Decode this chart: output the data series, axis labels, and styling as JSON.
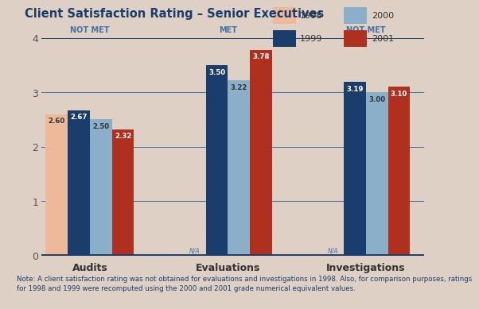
{
  "title": "Client Satisfaction Rating – Senior Executives",
  "categories": [
    "Audits",
    "Evaluations",
    "Investigations"
  ],
  "years": [
    "1998",
    "1999",
    "2000",
    "2001"
  ],
  "colors": {
    "1998": "#EDB99A",
    "1999": "#1A3D6B",
    "2000": "#8BAFC8",
    "2001": "#B03020"
  },
  "values": {
    "Audits": {
      "1998": 2.6,
      "1999": 2.67,
      "2000": 2.5,
      "2001": 2.32
    },
    "Evaluations": {
      "1998": null,
      "1999": 3.5,
      "2000": 3.22,
      "2001": 3.78
    },
    "Investigations": {
      "1998": null,
      "1999": 3.19,
      "2000": 3.0,
      "2001": 3.1
    }
  },
  "status_labels": {
    "Audits": "NOT MET",
    "Evaluations": "MET",
    "Investigations": "NOT MET"
  },
  "status_color": "#4472A8",
  "background_color": "#DED0C4",
  "plot_bg_color": "#DED0C4",
  "note_bg_color": "#E8E8EC",
  "axis_line_color": "#1A3D6B",
  "grid_color": "#4472A8",
  "title_color": "#1A3D6B",
  "ylabel_max": 4,
  "yticks": [
    0,
    1,
    2,
    3,
    4
  ],
  "note": "Note: A client satisfaction rating was not obtained for evaluations and investigations in 1998. Also, for comparison purposes, ratings\nfor 1998 and 1999 were recomputed using the 2000 and 2001 grade numerical equivalent values.",
  "na_label": "N/A",
  "bar_width": 0.16,
  "label_color_dark": "white",
  "label_color_light": "#333333"
}
